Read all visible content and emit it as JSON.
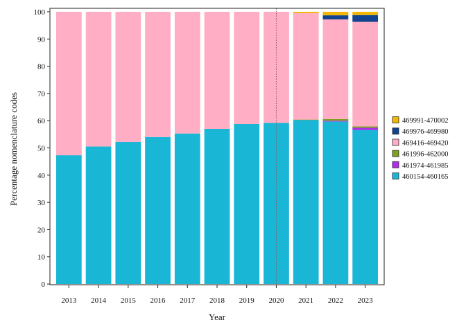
{
  "chart_data": {
    "type": "bar",
    "stacked": true,
    "xlabel": "Year",
    "ylabel": "Percentage nomenclature codes",
    "ylim": [
      0,
      100
    ],
    "yticks": [
      0,
      10,
      20,
      30,
      40,
      50,
      60,
      70,
      80,
      90,
      100
    ],
    "grid": false,
    "reference_line": {
      "x": "2020",
      "style": "dotted"
    },
    "categories": [
      "2013",
      "2014",
      "2015",
      "2016",
      "2017",
      "2018",
      "2019",
      "2020",
      "2021",
      "2022",
      "2023"
    ],
    "series": [
      {
        "name": "460154-460165",
        "color": "#1AB6D6",
        "values": [
          47.3,
          50.5,
          52.2,
          54.0,
          55.3,
          57.0,
          58.8,
          59.2,
          60.3,
          59.7,
          56.6
        ]
      },
      {
        "name": "461974-461985",
        "color": "#B22BE8",
        "values": [
          0,
          0,
          0,
          0,
          0,
          0,
          0,
          0,
          0,
          0.3,
          0.8
        ]
      },
      {
        "name": "461996-462000",
        "color": "#7FA020",
        "values": [
          0,
          0,
          0,
          0,
          0,
          0,
          0,
          0,
          0.1,
          0.6,
          0.5
        ]
      },
      {
        "name": "469416-469420",
        "color": "#FFAEC5",
        "values": [
          52.7,
          49.5,
          47.8,
          46.0,
          44.7,
          43.0,
          41.2,
          40.8,
          39.1,
          36.6,
          38.4
        ]
      },
      {
        "name": "469976-469980",
        "color": "#12438F",
        "values": [
          0,
          0,
          0,
          0,
          0,
          0,
          0,
          0,
          0,
          1.5,
          2.5
        ]
      },
      {
        "name": "469991-470002",
        "color": "#F2B705",
        "values": [
          0,
          0,
          0,
          0,
          0,
          0,
          0,
          0,
          0.5,
          1.3,
          1.2
        ]
      }
    ],
    "legend": {
      "placement": "right",
      "order": [
        "469991-470002",
        "469976-469980",
        "469416-469420",
        "461996-462000",
        "461974-461985",
        "460154-460165"
      ]
    }
  }
}
